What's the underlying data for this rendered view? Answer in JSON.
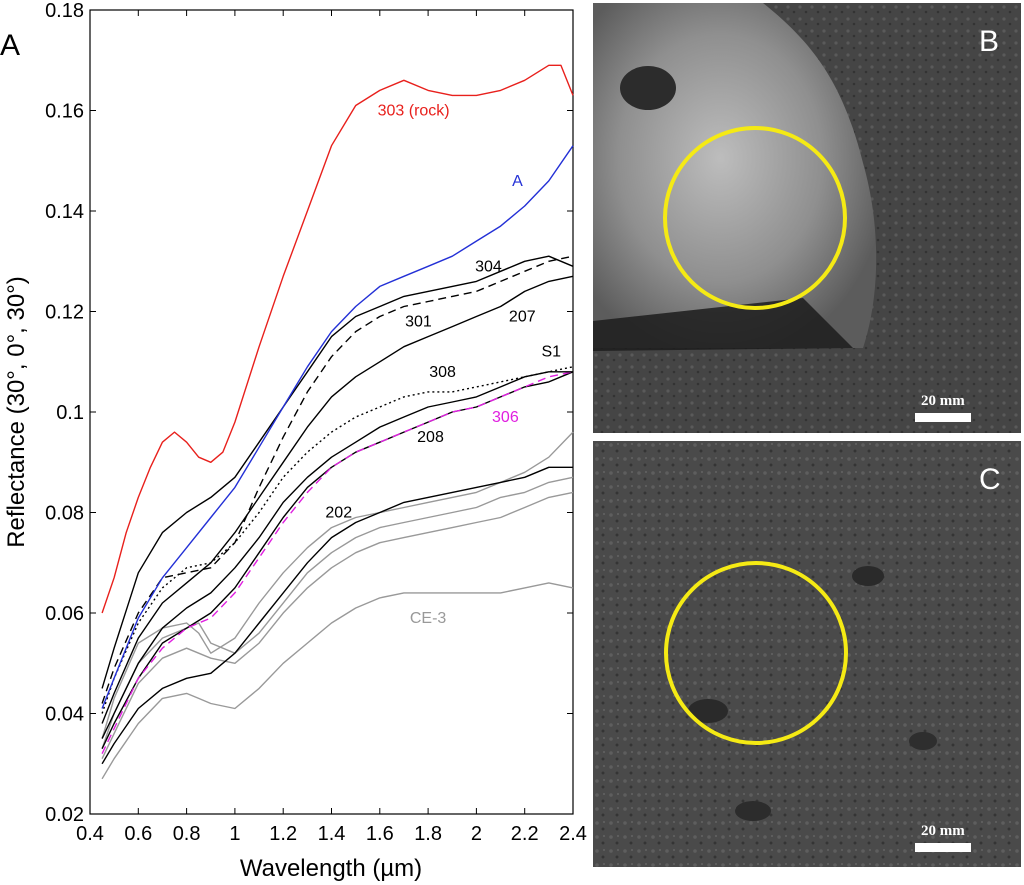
{
  "panel_a": {
    "letter": "A",
    "chart_data": {
      "type": "line",
      "title": "",
      "xlabel": "Wavelength (µm)",
      "ylabel": "Reflectance (30°, 0°, 30°)",
      "xlim": [
        0.4,
        2.4
      ],
      "ylim": [
        0.02,
        0.18
      ],
      "xticks": [
        "0.4",
        "0.6",
        "0.8",
        "1",
        "1.2",
        "1.4",
        "1.6",
        "1.8",
        "2",
        "2.2",
        "2.4"
      ],
      "yticks": [
        "0.02",
        "0.04",
        "0.06",
        "0.08",
        "0.1",
        "0.12",
        "0.14",
        "0.16",
        "0.18"
      ],
      "grid": false,
      "series": [
        {
          "label": "303 (rock)",
          "color": "#e8201c",
          "style": "solid",
          "x": [
            0.45,
            0.5,
            0.55,
            0.6,
            0.65,
            0.7,
            0.75,
            0.8,
            0.85,
            0.9,
            0.95,
            1.0,
            1.1,
            1.2,
            1.3,
            1.4,
            1.5,
            1.6,
            1.7,
            1.8,
            1.9,
            2.0,
            2.1,
            2.2,
            2.3,
            2.35,
            2.4
          ],
          "y": [
            0.06,
            0.067,
            0.076,
            0.083,
            0.089,
            0.094,
            0.096,
            0.094,
            0.091,
            0.09,
            0.092,
            0.098,
            0.113,
            0.127,
            0.14,
            0.153,
            0.161,
            0.164,
            0.166,
            0.164,
            0.163,
            0.163,
            0.164,
            0.166,
            0.169,
            0.169,
            0.163
          ]
        },
        {
          "label": "A",
          "color": "#2330d6",
          "style": "solid",
          "x": [
            0.45,
            0.5,
            0.6,
            0.7,
            0.8,
            0.9,
            1.0,
            1.1,
            1.2,
            1.3,
            1.4,
            1.5,
            1.6,
            1.7,
            1.8,
            1.9,
            2.0,
            2.1,
            2.2,
            2.3,
            2.4
          ],
          "y": [
            0.041,
            0.047,
            0.059,
            0.067,
            0.073,
            0.079,
            0.085,
            0.093,
            0.101,
            0.109,
            0.116,
            0.121,
            0.125,
            0.127,
            0.129,
            0.131,
            0.134,
            0.137,
            0.141,
            0.146,
            0.153
          ]
        },
        {
          "label": "304",
          "color": "#000000",
          "style": "solid",
          "x": [
            0.45,
            0.5,
            0.6,
            0.7,
            0.8,
            0.9,
            1.0,
            1.1,
            1.2,
            1.3,
            1.4,
            1.5,
            1.6,
            1.7,
            1.8,
            1.9,
            2.0,
            2.1,
            2.2,
            2.3,
            2.4
          ],
          "y": [
            0.045,
            0.053,
            0.068,
            0.076,
            0.08,
            0.083,
            0.087,
            0.094,
            0.101,
            0.108,
            0.115,
            0.119,
            0.121,
            0.123,
            0.124,
            0.125,
            0.126,
            0.128,
            0.13,
            0.131,
            0.129
          ]
        },
        {
          "label": "301",
          "color": "#000000",
          "style": "dashed",
          "x": [
            0.45,
            0.5,
            0.6,
            0.7,
            0.8,
            0.9,
            1.0,
            1.1,
            1.2,
            1.3,
            1.4,
            1.5,
            1.6,
            1.7,
            1.8,
            1.9,
            2.0,
            2.1,
            2.2,
            2.3,
            2.4
          ],
          "y": [
            0.042,
            0.049,
            0.06,
            0.067,
            0.068,
            0.069,
            0.074,
            0.085,
            0.095,
            0.104,
            0.111,
            0.116,
            0.119,
            0.121,
            0.122,
            0.123,
            0.124,
            0.126,
            0.128,
            0.13,
            0.131
          ]
        },
        {
          "label": "207",
          "color": "#000000",
          "style": "solid",
          "x": [
            0.45,
            0.5,
            0.6,
            0.7,
            0.8,
            0.9,
            1.0,
            1.1,
            1.2,
            1.3,
            1.4,
            1.5,
            1.6,
            1.7,
            1.8,
            1.9,
            2.0,
            2.1,
            2.2,
            2.3,
            2.4
          ],
          "y": [
            0.038,
            0.044,
            0.055,
            0.062,
            0.066,
            0.07,
            0.076,
            0.083,
            0.09,
            0.097,
            0.103,
            0.107,
            0.11,
            0.113,
            0.115,
            0.117,
            0.119,
            0.121,
            0.124,
            0.126,
            0.127
          ]
        },
        {
          "label": "308",
          "color": "#000000",
          "style": "dotted",
          "x": [
            0.45,
            0.5,
            0.6,
            0.7,
            0.8,
            0.9,
            1.0,
            1.1,
            1.2,
            1.3,
            1.4,
            1.5,
            1.6,
            1.7,
            1.8,
            1.9,
            2.0,
            2.1,
            2.2,
            2.3,
            2.4
          ],
          "y": [
            0.04,
            0.047,
            0.058,
            0.065,
            0.069,
            0.07,
            0.074,
            0.08,
            0.087,
            0.092,
            0.096,
            0.099,
            0.101,
            0.103,
            0.104,
            0.104,
            0.105,
            0.106,
            0.107,
            0.108,
            0.109
          ]
        },
        {
          "label": "S1",
          "color": "#000000",
          "style": "solid",
          "x": [
            0.45,
            0.5,
            0.6,
            0.7,
            0.8,
            0.9,
            1.0,
            1.1,
            1.2,
            1.3,
            1.4,
            1.5,
            1.6,
            1.7,
            1.8,
            1.9,
            2.0,
            2.1,
            2.2,
            2.3,
            2.4
          ],
          "y": [
            0.035,
            0.04,
            0.05,
            0.057,
            0.061,
            0.064,
            0.069,
            0.075,
            0.082,
            0.087,
            0.091,
            0.094,
            0.097,
            0.099,
            0.101,
            0.102,
            0.103,
            0.105,
            0.107,
            0.108,
            0.108
          ]
        },
        {
          "label": "306",
          "color": "#e020e0",
          "style": "dashed",
          "x": [
            0.45,
            0.5,
            0.6,
            0.7,
            0.8,
            0.9,
            1.0,
            1.1,
            1.2,
            1.3,
            1.4,
            1.5,
            1.6,
            1.7,
            1.8,
            1.9,
            2.0,
            2.1,
            2.2,
            2.3,
            2.4
          ],
          "y": [
            0.032,
            0.037,
            0.047,
            0.053,
            0.057,
            0.059,
            0.064,
            0.071,
            0.078,
            0.084,
            0.089,
            0.092,
            0.094,
            0.096,
            0.098,
            0.1,
            0.101,
            0.103,
            0.105,
            0.107,
            0.108
          ]
        },
        {
          "label": "208",
          "color": "#000000",
          "style": "solid",
          "x": [
            0.45,
            0.5,
            0.6,
            0.7,
            0.8,
            0.9,
            1.0,
            1.1,
            1.2,
            1.3,
            1.4,
            1.5,
            1.6,
            1.7,
            1.8,
            1.9,
            2.0,
            2.1,
            2.2,
            2.3,
            2.4
          ],
          "y": [
            0.033,
            0.038,
            0.047,
            0.054,
            0.057,
            0.06,
            0.065,
            0.072,
            0.079,
            0.085,
            0.089,
            0.092,
            0.094,
            0.096,
            0.098,
            0.1,
            0.101,
            0.103,
            0.105,
            0.106,
            0.108
          ]
        },
        {
          "label": "202",
          "color": "#000000",
          "style": "solid",
          "x": [
            0.45,
            0.5,
            0.6,
            0.7,
            0.8,
            0.9,
            1.0,
            1.1,
            1.2,
            1.3,
            1.4,
            1.5,
            1.6,
            1.7,
            1.8,
            1.9,
            2.0,
            2.1,
            2.2,
            2.3,
            2.4
          ],
          "y": [
            0.03,
            0.034,
            0.041,
            0.045,
            0.047,
            0.048,
            0.052,
            0.058,
            0.064,
            0.07,
            0.075,
            0.078,
            0.08,
            0.082,
            0.083,
            0.084,
            0.085,
            0.086,
            0.087,
            0.089,
            0.089
          ]
        },
        {
          "label": "",
          "color": "#999999",
          "style": "solid",
          "x": [
            0.45,
            0.5,
            0.6,
            0.7,
            0.8,
            0.85,
            0.9,
            1.0,
            1.1,
            1.2,
            1.3,
            1.4,
            1.5,
            1.6,
            1.7,
            1.8,
            1.9,
            2.0,
            2.1,
            2.2,
            2.3,
            2.4
          ],
          "y": [
            0.035,
            0.043,
            0.054,
            0.057,
            0.058,
            0.056,
            0.052,
            0.055,
            0.062,
            0.068,
            0.073,
            0.077,
            0.079,
            0.08,
            0.081,
            0.082,
            0.083,
            0.084,
            0.086,
            0.088,
            0.091,
            0.096
          ]
        },
        {
          "label": "",
          "color": "#999999",
          "style": "solid",
          "x": [
            0.45,
            0.5,
            0.6,
            0.7,
            0.8,
            0.85,
            0.9,
            1.0,
            1.1,
            1.2,
            1.3,
            1.4,
            1.5,
            1.6,
            1.7,
            1.8,
            1.9,
            2.0,
            2.1,
            2.2,
            2.3,
            2.4
          ],
          "y": [
            0.033,
            0.04,
            0.05,
            0.055,
            0.057,
            0.058,
            0.054,
            0.052,
            0.056,
            0.062,
            0.068,
            0.072,
            0.075,
            0.077,
            0.078,
            0.079,
            0.08,
            0.081,
            0.083,
            0.084,
            0.086,
            0.087
          ]
        },
        {
          "label": "",
          "color": "#999999",
          "style": "solid",
          "x": [
            0.45,
            0.5,
            0.6,
            0.7,
            0.8,
            0.9,
            1.0,
            1.1,
            1.2,
            1.3,
            1.4,
            1.5,
            1.6,
            1.7,
            1.8,
            1.9,
            2.0,
            2.1,
            2.2,
            2.3,
            2.4
          ],
          "y": [
            0.031,
            0.036,
            0.046,
            0.051,
            0.053,
            0.051,
            0.05,
            0.054,
            0.06,
            0.065,
            0.069,
            0.072,
            0.074,
            0.075,
            0.076,
            0.077,
            0.078,
            0.079,
            0.081,
            0.083,
            0.084
          ]
        },
        {
          "label": "CE-3",
          "color": "#999999",
          "style": "solid",
          "x": [
            0.45,
            0.5,
            0.6,
            0.7,
            0.8,
            0.85,
            0.9,
            1.0,
            1.1,
            1.2,
            1.3,
            1.4,
            1.5,
            1.6,
            1.7,
            1.8,
            1.9,
            2.0,
            2.1,
            2.2,
            2.3,
            2.4
          ],
          "y": [
            0.027,
            0.031,
            0.038,
            0.043,
            0.044,
            0.043,
            0.042,
            0.041,
            0.045,
            0.05,
            0.054,
            0.058,
            0.061,
            0.063,
            0.064,
            0.064,
            0.064,
            0.064,
            0.064,
            0.065,
            0.066,
            0.065
          ]
        }
      ],
      "annotations": [
        {
          "text": "303 (rock)",
          "x": 1.74,
          "y": 0.159,
          "color": "#e8201c"
        },
        {
          "text": "A",
          "x": 2.17,
          "y": 0.145,
          "color": "#2330d6"
        },
        {
          "text": "304",
          "x": 2.05,
          "y": 0.128,
          "color": "#000000"
        },
        {
          "text": "301",
          "x": 1.76,
          "y": 0.117,
          "color": "#000000"
        },
        {
          "text": "207",
          "x": 2.19,
          "y": 0.118,
          "color": "#000000"
        },
        {
          "text": "S1",
          "x": 2.31,
          "y": 0.111,
          "color": "#000000"
        },
        {
          "text": "308",
          "x": 1.86,
          "y": 0.107,
          "color": "#000000"
        },
        {
          "text": "306",
          "x": 2.12,
          "y": 0.098,
          "color": "#e020e0"
        },
        {
          "text": "208",
          "x": 1.81,
          "y": 0.094,
          "color": "#000000"
        },
        {
          "text": "202",
          "x": 1.43,
          "y": 0.079,
          "color": "#000000"
        },
        {
          "text": "CE-3",
          "x": 1.8,
          "y": 0.058,
          "color": "#999999"
        }
      ]
    }
  },
  "panel_b": {
    "letter": "B",
    "scale_label": "20 mm"
  },
  "panel_c": {
    "letter": "C",
    "scale_label": "20 mm"
  }
}
